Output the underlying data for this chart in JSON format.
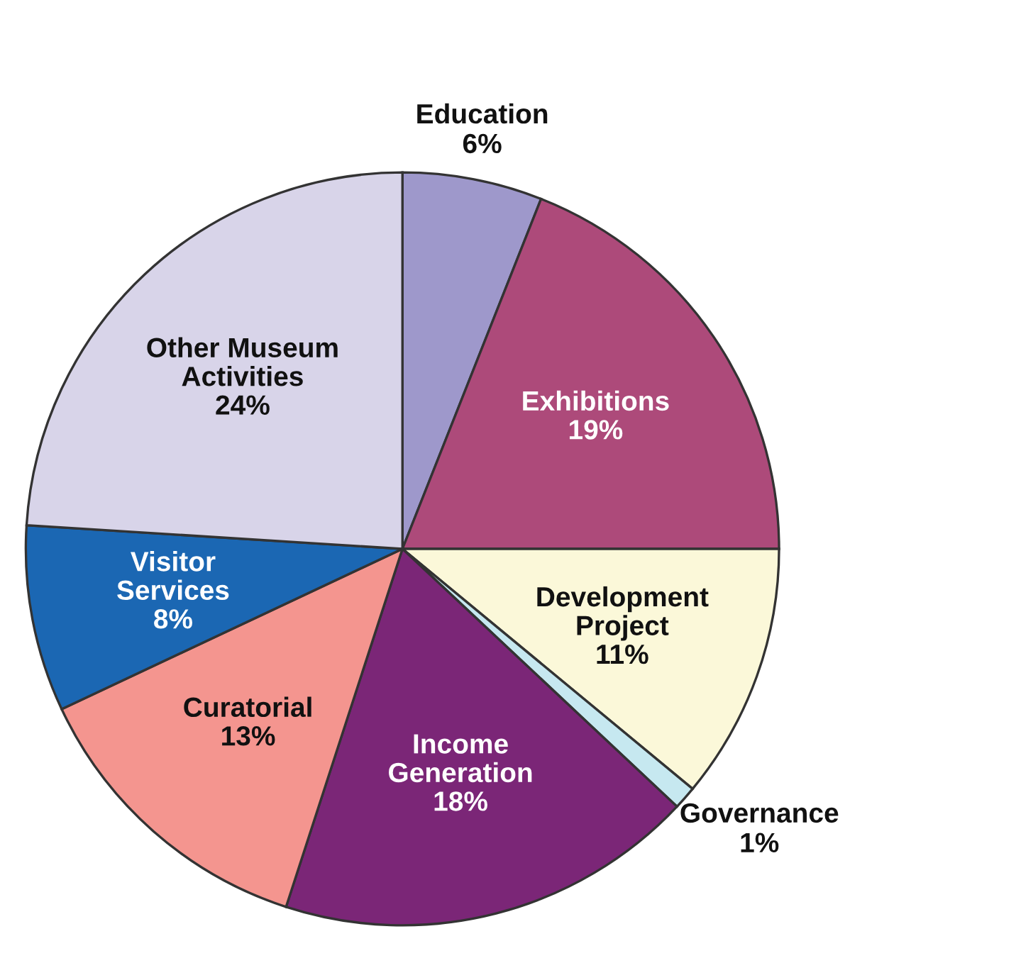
{
  "chart_data": {
    "type": "pie",
    "categories": [
      "Education",
      "Exhibitions",
      "Development\nProject",
      "Governance",
      "Income\nGeneration",
      "Curatorial",
      "Visitor\nServices",
      "Other Museum\nActivities"
    ],
    "values": [
      6,
      19,
      11,
      1,
      18,
      13,
      8,
      24
    ],
    "value_labels": [
      "6%",
      "19%",
      "11%",
      "1%",
      "18%",
      "13%",
      "8%",
      "24%"
    ],
    "colors": [
      "#9e98cb",
      "#ad4a7a",
      "#fbf8d9",
      "#c6e8f0",
      "#7b2677",
      "#f4958f",
      "#1b67b3",
      "#d8d4e9"
    ],
    "legend": false
  }
}
